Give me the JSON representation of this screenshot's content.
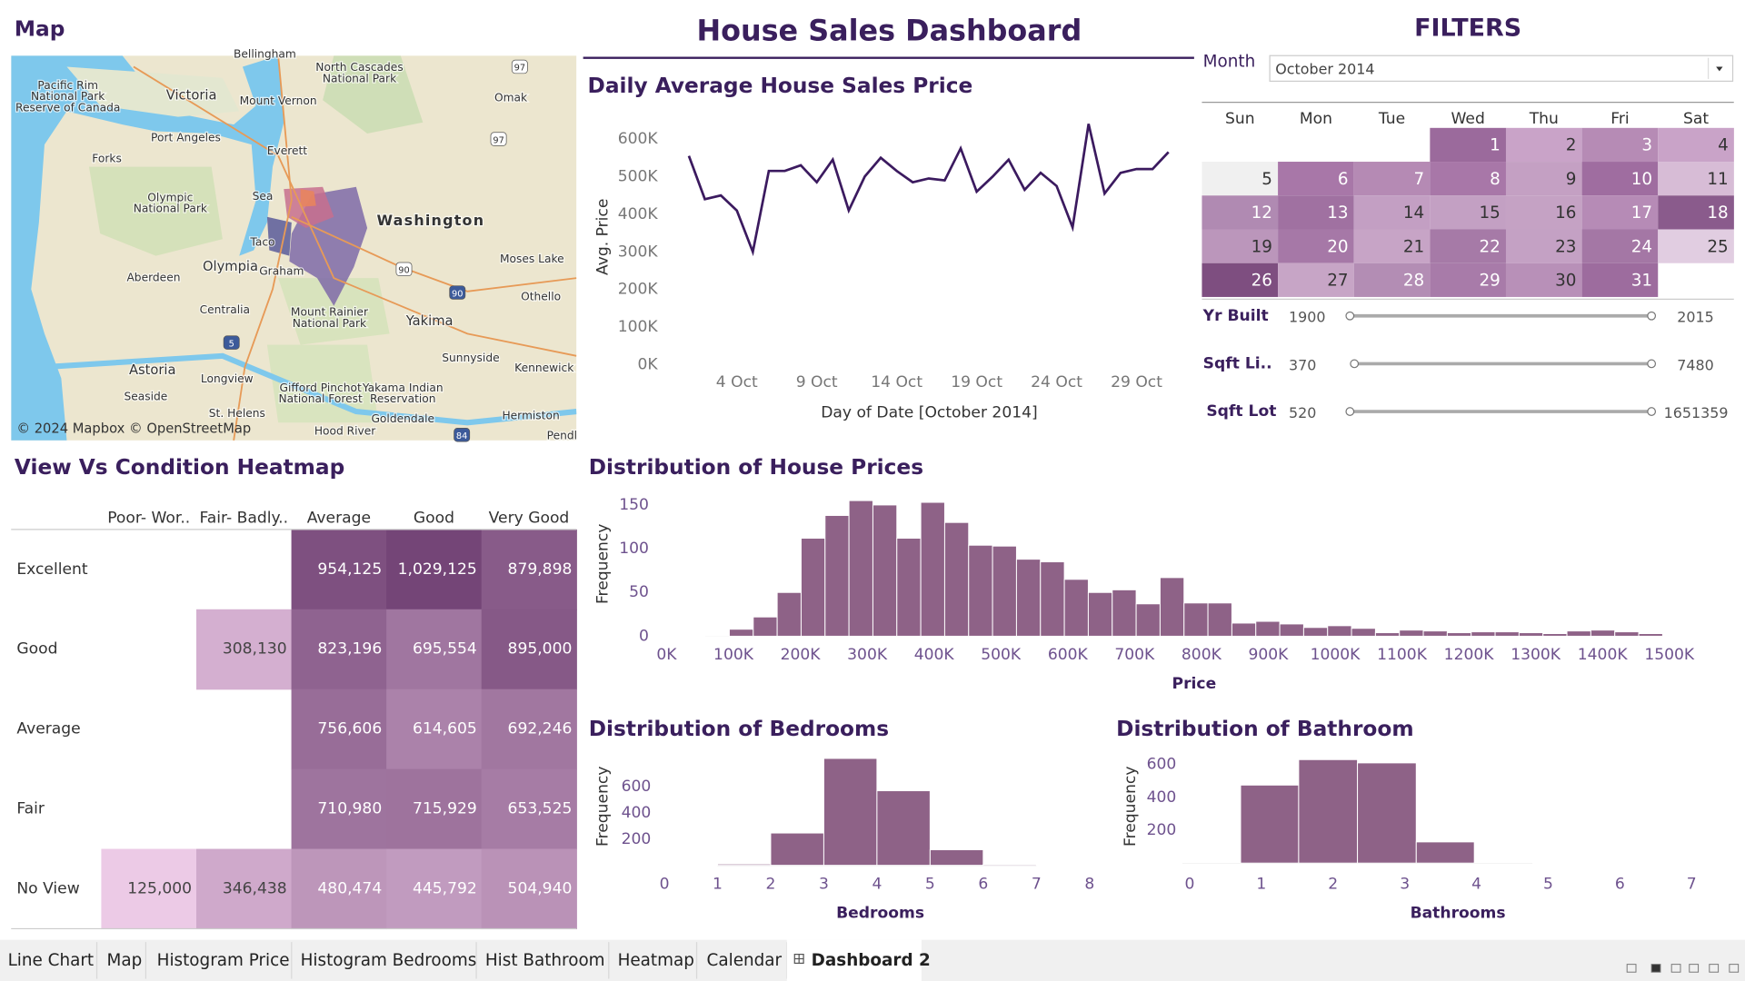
{
  "header": {
    "title": "House Sales Dashboard"
  },
  "map": {
    "title": "Map",
    "attribution": "© 2024 Mapbox © OpenStreetMap",
    "places": [
      "Bellingham",
      "Pacific Rim",
      "National Park",
      "Reserve of Canada",
      "North Cascades",
      "National Park",
      "Omak",
      "Victoria",
      "Mount Vernon",
      "Port Angeles",
      "Everett",
      "Forks",
      "Olympic",
      "National Park",
      "Sea",
      "Washington",
      "Taco",
      "Olympia",
      "Graham",
      "Aberdeen",
      "Moses Lake",
      "Othello",
      "Centralia",
      "Mount Rainier",
      "National Park",
      "Yakima",
      "Sunnyside",
      "Kennewick",
      "Astoria",
      "Longview",
      "Gifford Pinchot",
      "National Forest",
      "Yakama Indian",
      "Reservation",
      "Seaside",
      "St. Helens",
      "Goldendale",
      "Hermiston",
      "Hood River",
      "Pendl"
    ],
    "shields": [
      "97",
      "97",
      "90",
      "90",
      "5",
      "84"
    ]
  },
  "filters": {
    "title": "FILTERS",
    "month_label": "Month",
    "month": "October 2014",
    "weekdays": [
      "Sun",
      "Mon",
      "Tue",
      "Wed",
      "Thu",
      "Fri",
      "Sat"
    ],
    "days": [
      1,
      2,
      3,
      4,
      5,
      6,
      7,
      8,
      9,
      10,
      11,
      12,
      13,
      14,
      15,
      16,
      17,
      18,
      19,
      20,
      21,
      22,
      23,
      24,
      25,
      26,
      27,
      28,
      29,
      30,
      31
    ],
    "day_colors": [
      "#9b6a9c",
      "#c9a3c8",
      "#b68bb5",
      "#c9a3c8",
      "#f0f0f0",
      "#a877a8",
      "#b58ab4",
      "#a877a8",
      "#c4a0c3",
      "#9f6da0",
      "#d7bcd6",
      "#b08ab2",
      "#a071a1",
      "#c39fc3",
      "#c3a0c3",
      "#c5a2c4",
      "#b68bb6",
      "#8a5b8c",
      "#bb96bb",
      "#a678a7",
      "#c7a4c6",
      "#a67aa7",
      "#c4a1c4",
      "#a477a5",
      "#e1cde1",
      "#7e4e80",
      "#c7a5c6",
      "#b38db4",
      "#a87ba9",
      "#b890b8",
      "#9d6c9e"
    ],
    "sliders": [
      {
        "label": "Yr Built",
        "min": 1900,
        "max": 2015
      },
      {
        "label": "Sqft Li..",
        "min": 370,
        "max": 7480
      },
      {
        "label": "Sqft Lot",
        "min": 520,
        "max": 1651359
      }
    ]
  },
  "chart_data": [
    {
      "type": "line",
      "title": "Daily Average House Sales Price",
      "x_label": "Day of Date [October 2014]",
      "y_label": "Avg. Price",
      "color": "#3b1a5f",
      "x": [
        1,
        2,
        3,
        4,
        5,
        6,
        7,
        8,
        9,
        10,
        11,
        12,
        13,
        14,
        15,
        16,
        17,
        18,
        19,
        20,
        21,
        22,
        23,
        24,
        25,
        26,
        27,
        28,
        29,
        30,
        31
      ],
      "values": [
        555000,
        440000,
        450000,
        410000,
        300000,
        515000,
        515000,
        530000,
        485000,
        545000,
        410000,
        500000,
        550000,
        515000,
        485000,
        495000,
        490000,
        575000,
        460000,
        500000,
        545000,
        465000,
        510000,
        475000,
        365000,
        640000,
        455000,
        510000,
        520000,
        520000,
        565000
      ],
      "xlim": [
        1,
        31
      ],
      "xticks": [
        {
          "value": 4,
          "label": "4 Oct"
        },
        {
          "value": 9,
          "label": "9 Oct"
        },
        {
          "value": 14,
          "label": "14 Oct"
        },
        {
          "value": 19,
          "label": "19 Oct"
        },
        {
          "value": 24,
          "label": "24 Oct"
        },
        {
          "value": 29,
          "label": "29 Oct"
        }
      ],
      "ylim": [
        0,
        650000
      ],
      "yticks": [
        {
          "value": 0,
          "label": "0K"
        },
        {
          "value": 100000,
          "label": "100K"
        },
        {
          "value": 200000,
          "label": "200K"
        },
        {
          "value": 300000,
          "label": "300K"
        },
        {
          "value": 400000,
          "label": "400K"
        },
        {
          "value": 500000,
          "label": "500K"
        },
        {
          "value": 600000,
          "label": "600K"
        }
      ]
    },
    {
      "type": "heatmap",
      "title": "View Vs Condition Heatmap",
      "categories": [
        "Poor- Wor..",
        "Fair- Badly..",
        "Average",
        "Good",
        "Very Good"
      ],
      "rows": [
        "Excellent",
        "Good",
        "Average",
        "Fair",
        "No View"
      ],
      "values": [
        [
          null,
          null,
          954125,
          1029125,
          879898
        ],
        [
          null,
          308130,
          823196,
          695554,
          895000
        ],
        [
          null,
          null,
          756606,
          614605,
          692246
        ],
        [
          null,
          null,
          710980,
          715929,
          653525
        ],
        [
          125000,
          346438,
          480474,
          445792,
          504940
        ]
      ],
      "value_labels": [
        [
          null,
          null,
          "954,125",
          "1,029,125",
          "879,898"
        ],
        [
          null,
          "308,130",
          "823,196",
          "695,554",
          "895,000"
        ],
        [
          null,
          null,
          "756,606",
          "614,605",
          "692,246"
        ],
        [
          null,
          null,
          "710,980",
          "715,929",
          "653,525"
        ],
        [
          "125,000",
          "346,438",
          "480,474",
          "445,792",
          "504,940"
        ]
      ],
      "colors": [
        "#eccae6",
        "#744577"
      ]
    },
    {
      "type": "histogram",
      "title": "Distribution of House Prices",
      "x_label": "Price",
      "y_label": "Frequency",
      "color": "#8e6287",
      "bins": [
        58000,
        93800,
        129600,
        165400,
        201200,
        237000,
        272800,
        308600,
        344400,
        380200,
        416000,
        451800,
        487600,
        523400,
        559200,
        595000,
        630800,
        666600,
        702400,
        738200,
        774000,
        809800,
        845600,
        881400,
        917200,
        953000,
        988800,
        1024600,
        1060400,
        1096200,
        1132000,
        1167800,
        1203600,
        1239400,
        1275200,
        1311000,
        1346800,
        1382600,
        1418400,
        1454200,
        1490000
      ],
      "values": [
        1,
        8,
        22,
        50,
        112,
        138,
        155,
        150,
        112,
        153,
        130,
        104,
        103,
        88,
        85,
        65,
        50,
        53,
        37,
        67,
        38,
        38,
        15,
        17,
        14,
        10,
        12,
        9,
        4,
        7,
        6,
        4,
        5,
        5,
        4,
        3,
        6,
        7,
        5,
        3
      ],
      "xlim": [
        0,
        1500000
      ],
      "xticks": [
        {
          "value": 0,
          "label": "0K"
        },
        {
          "value": 100000,
          "label": "100K"
        },
        {
          "value": 200000,
          "label": "200K"
        },
        {
          "value": 300000,
          "label": "300K"
        },
        {
          "value": 400000,
          "label": "400K"
        },
        {
          "value": 500000,
          "label": "500K"
        },
        {
          "value": 600000,
          "label": "600K"
        },
        {
          "value": 700000,
          "label": "700K"
        },
        {
          "value": 800000,
          "label": "800K"
        },
        {
          "value": 900000,
          "label": "900K"
        },
        {
          "value": 1000000,
          "label": "1000K"
        },
        {
          "value": 1100000,
          "label": "1100K"
        },
        {
          "value": 1200000,
          "label": "1200K"
        },
        {
          "value": 1300000,
          "label": "1300K"
        },
        {
          "value": 1400000,
          "label": "1400K"
        },
        {
          "value": 1500000,
          "label": "1500K"
        }
      ],
      "ylim": [
        0,
        150
      ],
      "yticks": [
        0,
        50,
        100,
        150
      ]
    },
    {
      "type": "histogram",
      "title": "Distribution of Bedrooms",
      "x_label": "Bedrooms",
      "y_label": "Frequency",
      "color": "#8e6287",
      "bins": [
        1,
        2,
        3,
        4,
        5,
        6,
        7
      ],
      "values": [
        10,
        247,
        817,
        570,
        119,
        8
      ],
      "xlim": [
        0,
        8
      ],
      "xticks": [
        0,
        1,
        2,
        3,
        4,
        5,
        6,
        7,
        8
      ],
      "ylim": [
        0,
        850
      ],
      "yticks": [
        200,
        400,
        600
      ]
    },
    {
      "type": "histogram",
      "title": "Distribution of Bathroom",
      "x_label": "Bathrooms",
      "y_label": "Frequency",
      "color": "#8e6287",
      "bins": [
        -0.1,
        0.71,
        1.52,
        2.34,
        3.16,
        3.97,
        4.78
      ],
      "values": [
        5,
        475,
        630,
        610,
        129,
        2
      ],
      "xlim": [
        0,
        7
      ],
      "xticks": [
        0,
        1,
        2,
        3,
        4,
        5,
        6,
        7
      ],
      "ylim": [
        0,
        650
      ],
      "yticks": [
        200,
        400,
        600
      ]
    }
  ],
  "tabs": [
    {
      "label": "Line Chart",
      "active": false
    },
    {
      "label": "Map",
      "active": false
    },
    {
      "label": "Histogram Price",
      "active": false
    },
    {
      "label": "Histogram Bedrooms",
      "active": false
    },
    {
      "label": "Hist Bathroom",
      "active": false
    },
    {
      "label": "Heatmap",
      "active": false
    },
    {
      "label": "Calendar",
      "active": false
    },
    {
      "label": "Dashboard 2",
      "active": true
    }
  ]
}
